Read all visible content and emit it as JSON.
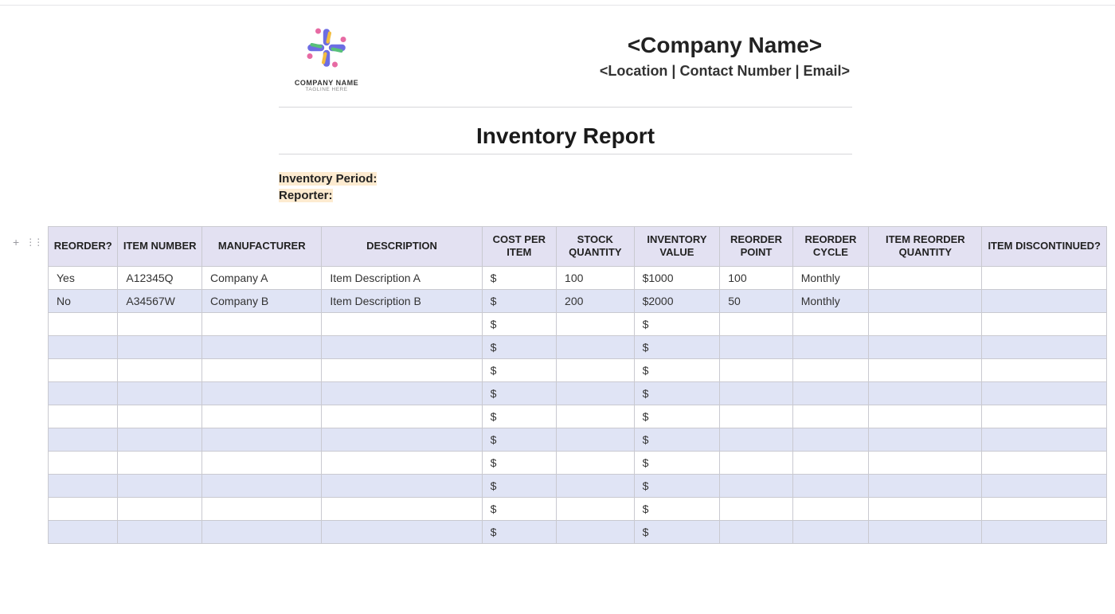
{
  "header": {
    "company_name": "<Company Name>",
    "company_subline": "<Location | Contact Number | Email>",
    "logo_name": "COMPANY NAME",
    "logo_tagline": "TAGLINE HERE",
    "logo_colors": {
      "purple": "#6d6de3",
      "pink": "#e76aa3",
      "green": "#58c07a",
      "yellow": "#f3bd3f"
    }
  },
  "report": {
    "title": "Inventory Report",
    "meta_period_label": "Inventory Period:",
    "meta_reporter_label": "Reporter:",
    "highlight_bg": "#fdebd0"
  },
  "table": {
    "header_bg": "#e3e1f2",
    "row_alt_bg": "#e0e4f5",
    "border_color": "#c9c9d0",
    "columns": [
      "REORDER?",
      "ITEM NUMBER",
      "MANUFACTURER",
      "DESCRIPTION",
      "COST PER ITEM",
      "STOCK QUANTITY",
      "INVENTORY VALUE",
      "REORDER POINT",
      "REORDER CYCLE",
      "ITEM REORDER QUANTITY",
      "ITEM DISCONTINUED?"
    ],
    "total_rows": 12,
    "rows": [
      {
        "reorder": "Yes",
        "item_number": "A12345Q",
        "manufacturer": "Company A",
        "description": "Item Description A",
        "cost_per_item": "$",
        "stock_quantity": "100",
        "inventory_value": "$1000",
        "reorder_point": "100",
        "reorder_cycle": "Monthly",
        "item_reorder_qty": "",
        "discontinued": ""
      },
      {
        "reorder": "No",
        "item_number": "A34567W",
        "manufacturer": "Company B",
        "description": "Item Description B",
        "cost_per_item": "$",
        "stock_quantity": "200",
        "inventory_value": "$2000",
        "reorder_point": "50",
        "reorder_cycle": "Monthly",
        "item_reorder_qty": "",
        "discontinued": ""
      }
    ],
    "empty_row": {
      "reorder": "",
      "item_number": "",
      "manufacturer": "",
      "description": "",
      "cost_per_item": "$",
      "stock_quantity": "",
      "inventory_value": "$",
      "reorder_point": "",
      "reorder_cycle": "",
      "item_reorder_qty": "",
      "discontinued": ""
    }
  },
  "controls": {
    "plus": "+",
    "grip": "⋮⋮"
  }
}
